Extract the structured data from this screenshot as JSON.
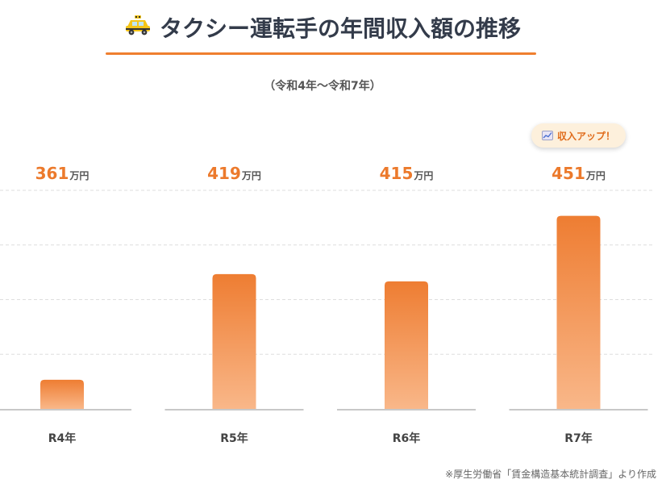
{
  "title": {
    "icon": "taxi-icon",
    "text": "タクシー運転手の年間収入額の推移"
  },
  "subtitle": "（令和4年〜令和7年）",
  "badge": {
    "icon": "chart-up-icon",
    "text": "収入アップ！"
  },
  "footnote": "※厚生労働省「賃金構造基本統計調査」より作成",
  "colors": {
    "accent": "#ef7f2f",
    "bar_top": "#ee7d32",
    "bar_bottom": "#f9b789"
  },
  "chart_data": {
    "type": "bar",
    "categories": [
      "R4年",
      "R5年",
      "R6年",
      "R7年"
    ],
    "values": [
      361,
      419,
      415,
      451
    ],
    "unit": "万円",
    "ylim": [
      345,
      465
    ],
    "grid": true,
    "highlight": {
      "category": "R7年",
      "label": "収入アップ！"
    }
  }
}
